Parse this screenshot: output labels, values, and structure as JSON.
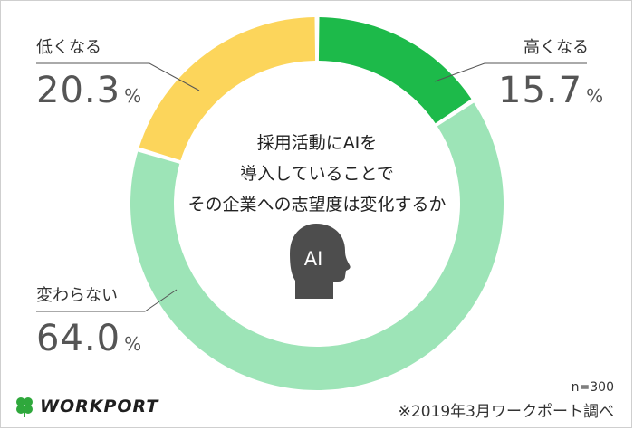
{
  "chart_data": {
    "type": "pie",
    "style": "donut",
    "title": "採用活動にAIを導入していることでその企業への志望度は変化するか",
    "title_lines": [
      "採用活動にAIを",
      "導入していることで",
      "その企業への志望度は変化するか"
    ],
    "slices": [
      {
        "label": "高くなる",
        "value": 15.7,
        "value_text": "15.7",
        "color": "#1dba4a"
      },
      {
        "label": "変わらない",
        "value": 64.0,
        "value_text": "64.0",
        "color": "#9de4b7"
      },
      {
        "label": "低くなる",
        "value": 20.3,
        "value_text": "20.3",
        "color": "#fcd55b"
      }
    ],
    "unit": "%",
    "center_icon": {
      "name": "ai-head-icon",
      "text": "AI",
      "color": "#4d4d4d"
    }
  },
  "footnote": {
    "n": "n=300",
    "source": "※2019年3月ワークポート調べ"
  },
  "logo": {
    "text": "WORKPORT",
    "color": "#2fa83c"
  }
}
